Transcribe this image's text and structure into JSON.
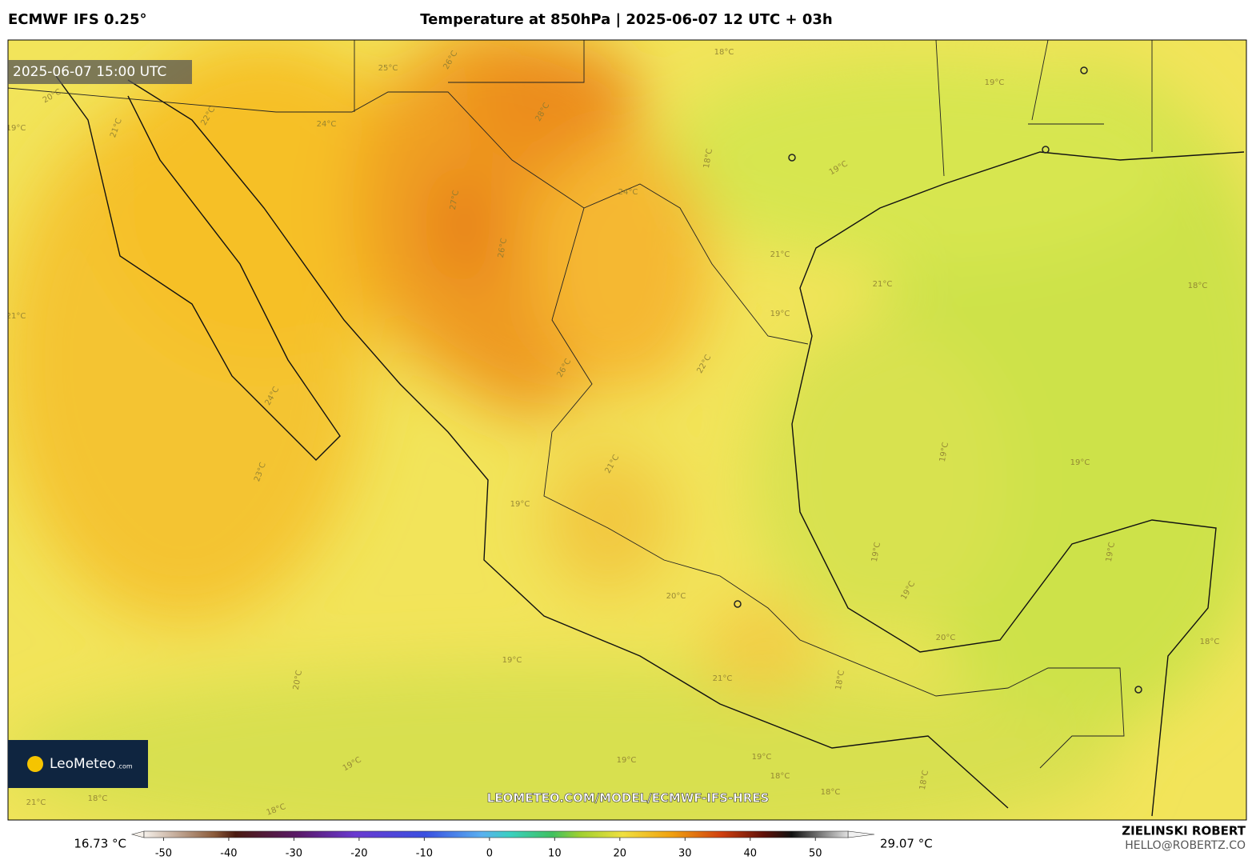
{
  "header": {
    "model": "ECMWF IFS 0.25°",
    "title": "Temperature at 850hPa | 2025-06-07 12 UTC + 03h"
  },
  "map": {
    "timestamp": "2025-06-07 15:00 UTC",
    "watermark": "LEOMETEO.COM/MODEL/ECMWF-IFS-HRES",
    "logo": "LeoMeteo",
    "logo_suffix": ".com",
    "contour_labels": [
      "18°C",
      "19°C",
      "18°C",
      "19°C",
      "24°C",
      "22°C",
      "21°C",
      "19°C",
      "24°C",
      "27°C",
      "26°C",
      "21°C",
      "21°C",
      "18°C",
      "19°C",
      "22°C",
      "24°C",
      "23°C",
      "19°C",
      "19°C",
      "21°C",
      "19°C",
      "19°C",
      "19°C",
      "19°C",
      "20°C",
      "20°C",
      "18°C",
      "20°C",
      "19°C",
      "21°C",
      "18°C",
      "19°C",
      "19°C",
      "19°C",
      "18°C",
      "18°C",
      "18°C",
      "18°C",
      "21°C",
      "18°C",
      "21°C",
      "20°C",
      "25°C",
      "26°C",
      "28°C",
      "26°C"
    ]
  },
  "colorbar": {
    "min_label": "16.73 °C",
    "max_label": "29.07 °C",
    "range": [
      -53,
      55
    ],
    "ticks": [
      -50,
      -40,
      -30,
      -20,
      -10,
      0,
      10,
      20,
      30,
      40,
      50
    ]
  },
  "credit": {
    "author": "ZIELINSKI ROBERT",
    "email": "HELLO@ROBERTZ.CO"
  }
}
